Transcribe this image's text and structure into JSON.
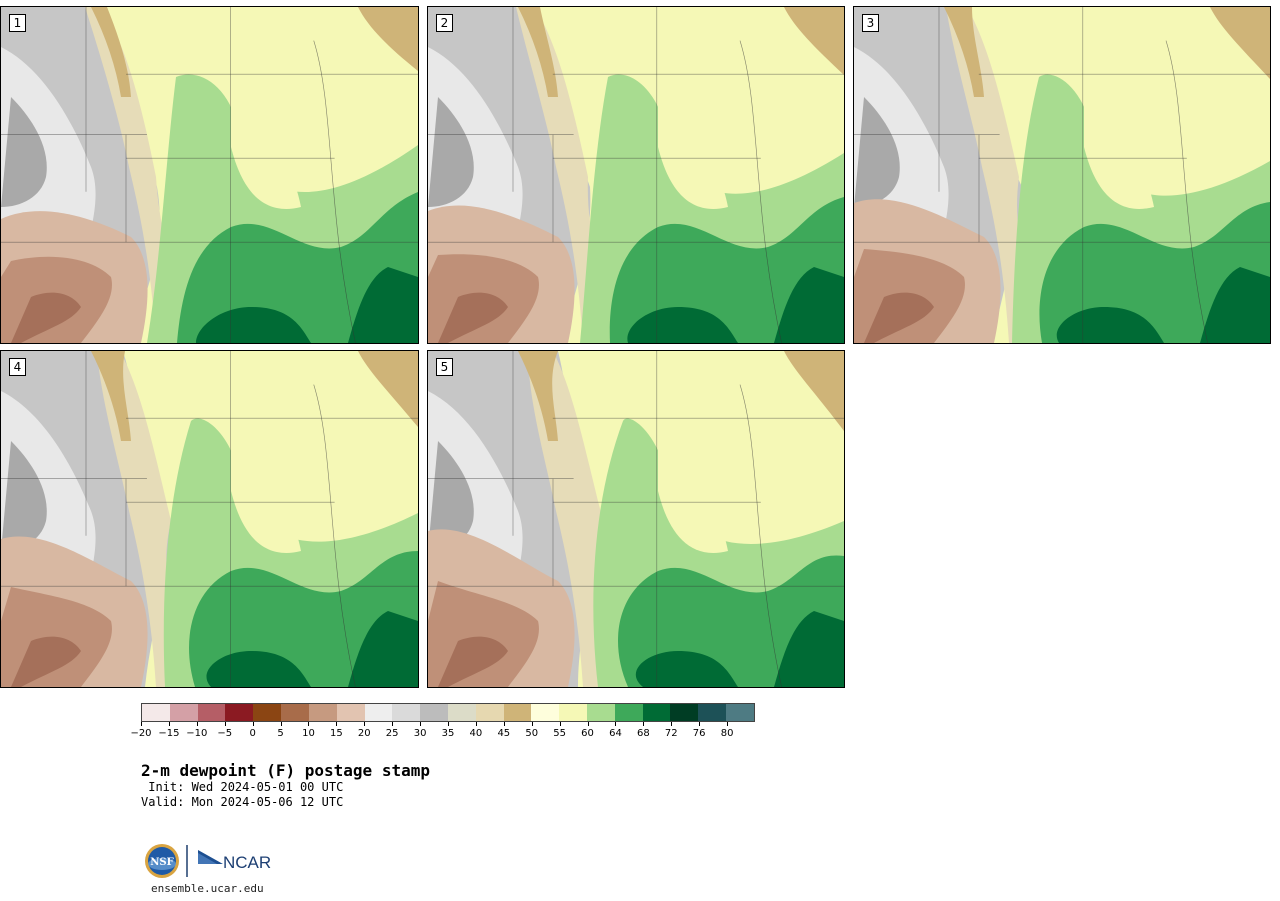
{
  "panels": [
    {
      "label": "1",
      "variant": 1
    },
    {
      "label": "2",
      "variant": 2
    },
    {
      "label": "3",
      "variant": 3
    },
    {
      "label": "4",
      "variant": 4
    },
    {
      "label": "5",
      "variant": 5
    }
  ],
  "colorbar": {
    "colors": [
      "#f4e9e9",
      "#d4a0a6",
      "#b55e66",
      "#8b1a22",
      "#8b4513",
      "#a86c4a",
      "#c69a80",
      "#e2c4b1",
      "#eeeeee",
      "#dadada",
      "#bcbcbc",
      "#dcdcc8",
      "#e6d8b0",
      "#cfb478",
      "#fefedc",
      "#f5f8b6",
      "#a8dc90",
      "#3ea95a",
      "#006b35",
      "#003d24",
      "#1d5157",
      "#4e7b83"
    ],
    "ticks": [
      "−20",
      "−15",
      "−10",
      "−5",
      "0",
      "5",
      "10",
      "15",
      "20",
      "25",
      "30",
      "35",
      "40",
      "45",
      "50",
      "55",
      "60",
      "64",
      "68",
      "72",
      "76",
      "80"
    ]
  },
  "title": "2-m dewpoint (F) postage stamp",
  "init": " Init: Wed 2024-05-01 00 UTC",
  "valid": "Valid: Mon 2024-05-06 12 UTC",
  "logo": {
    "nsf": "NSF",
    "ncar": "NCAR"
  },
  "url": "ensemble.ucar.edu"
}
